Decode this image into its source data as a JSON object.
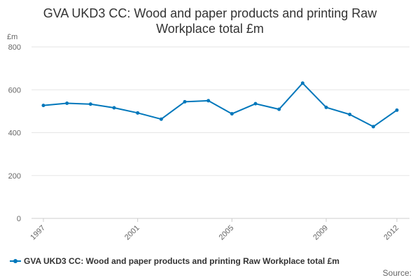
{
  "chart_data": {
    "type": "line",
    "title": "GVA UKD3 CC: Wood and paper products and printing Raw Workplace total £m",
    "unit_label": "£m",
    "xlabel": "",
    "ylabel": "",
    "x": [
      1997,
      1998,
      1999,
      2000,
      2001,
      2002,
      2003,
      2004,
      2005,
      2006,
      2007,
      2008,
      2009,
      2010,
      2011,
      2012
    ],
    "x_tick_labels": [
      "1997",
      "2001",
      "2005",
      "2009",
      "2012"
    ],
    "y_ticks": [
      0,
      200,
      400,
      600,
      800
    ],
    "ylim": [
      0,
      800
    ],
    "grid": "horizontal",
    "legend_position": "bottom-left",
    "series": [
      {
        "name": "GVA UKD3 CC: Wood and paper products and printing Raw Workplace total £m",
        "color": "#0077bb",
        "values": [
          527,
          537,
          533,
          516,
          492,
          463,
          544,
          549,
          488,
          535,
          509,
          631,
          518,
          485,
          428,
          505
        ]
      }
    ]
  },
  "source_text": "Source:"
}
